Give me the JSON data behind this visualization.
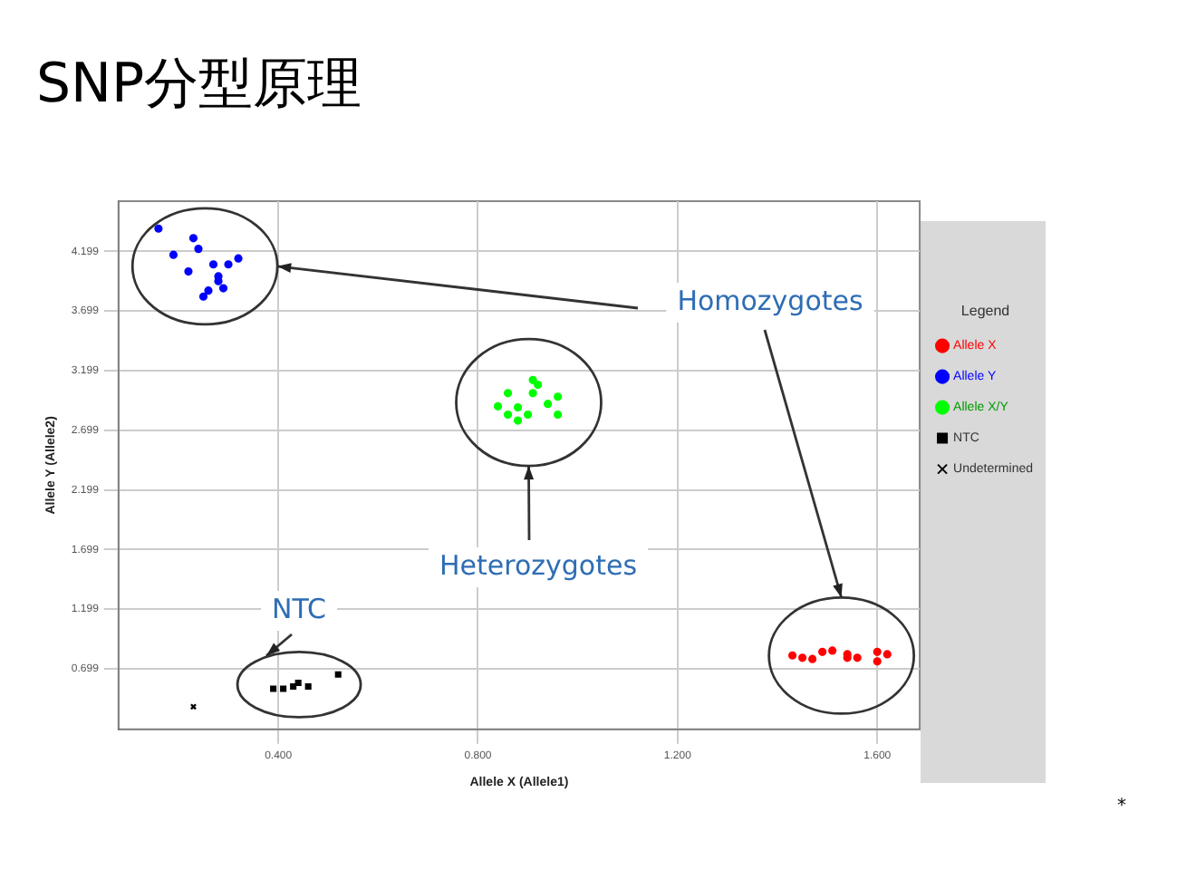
{
  "chart_data": {
    "type": "scatter",
    "title": "SNP分型原理",
    "xlabel": "Allele X (Allele1)",
    "ylabel": "Allele Y (Allele2)",
    "legend_title": "Legend",
    "legend": "right",
    "grid": true,
    "xlim": [
      0.08,
      1.685
    ],
    "xticks": [
      {
        "value": 0.4,
        "label": "0.400"
      },
      {
        "value": 0.8,
        "label": "0.800"
      },
      {
        "value": 1.2,
        "label": "1.200"
      },
      {
        "value": 1.6,
        "label": "1.600"
      }
    ],
    "ylim": [
      0.19,
      4.62
    ],
    "yticks": [
      {
        "value": 0.699,
        "label": "0.699"
      },
      {
        "value": 1.199,
        "label": "1.199"
      },
      {
        "value": 1.699,
        "label": "1.699"
      },
      {
        "value": 2.199,
        "label": "2.199"
      },
      {
        "value": 2.699,
        "label": "2.699"
      },
      {
        "value": 3.199,
        "label": "3.199"
      },
      {
        "value": 3.699,
        "label": "3.699"
      },
      {
        "value": 4.199,
        "label": "4.199"
      }
    ],
    "series": [
      {
        "name": "Allele X",
        "color": "#ff0000",
        "marker": "circle",
        "x": [
          1.43,
          1.45,
          1.47,
          1.49,
          1.51,
          1.54,
          1.54,
          1.56,
          1.6,
          1.6,
          1.62
        ],
        "values": [
          0.81,
          0.79,
          0.78,
          0.84,
          0.85,
          0.82,
          0.79,
          0.79,
          0.76,
          0.84,
          0.82
        ]
      },
      {
        "name": "Allele Y",
        "color": "#0000ff",
        "marker": "circle",
        "x": [
          0.16,
          0.23,
          0.24,
          0.19,
          0.32,
          0.3,
          0.27,
          0.22,
          0.28,
          0.28,
          0.29,
          0.26,
          0.25
        ],
        "values": [
          4.39,
          4.31,
          4.22,
          4.17,
          4.14,
          4.09,
          4.09,
          4.03,
          3.99,
          3.95,
          3.89,
          3.87,
          3.82
        ]
      },
      {
        "name": "Allele X/Y",
        "color": "#00ff00",
        "marker": "circle",
        "x": [
          0.91,
          0.92,
          0.91,
          0.86,
          0.96,
          0.94,
          0.84,
          0.88,
          0.9,
          0.86,
          0.88,
          0.96
        ],
        "values": [
          3.12,
          3.08,
          3.01,
          3.01,
          2.98,
          2.92,
          2.9,
          2.89,
          2.83,
          2.83,
          2.78,
          2.83
        ]
      },
      {
        "name": "NTC",
        "color": "#000000",
        "marker": "square",
        "x": [
          0.39,
          0.41,
          0.43,
          0.44,
          0.46,
          0.52
        ],
        "values": [
          0.53,
          0.53,
          0.55,
          0.58,
          0.55,
          0.65
        ]
      },
      {
        "name": "Undetermined",
        "color": "#000000",
        "marker": "cross",
        "x": [
          0.23
        ],
        "values": [
          0.38
        ]
      }
    ],
    "annotations": [
      "Homozygotes",
      "Heterozygotes",
      "NTC",
      "*"
    ]
  }
}
